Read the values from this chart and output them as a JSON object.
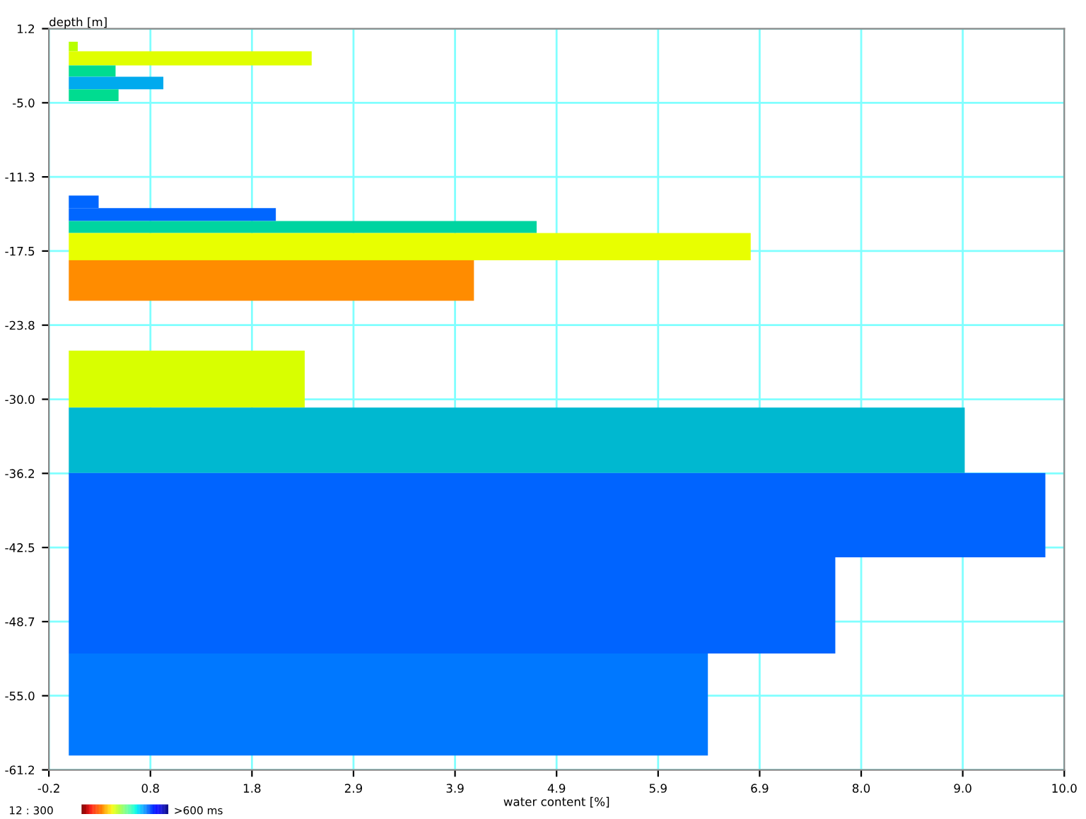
{
  "chart_data": {
    "type": "histogram",
    "orientation": "horizontal",
    "xlabel": "water content [%]",
    "ylabel": "depth [m]",
    "bins": [
      0.1,
      -0.7,
      -1.9,
      -2.85,
      -3.9,
      -4.9,
      -12.85,
      -13.9,
      -15.0,
      -16.0,
      -18.3,
      -21.7,
      -25.9,
      -30.7,
      -36.2,
      -43.3,
      -51.4,
      -60.0
    ],
    "values": [
      0.09,
      2.44,
      0.47,
      0.95,
      0.5,
      0,
      0.3,
      2.08,
      4.7,
      6.85,
      4.07,
      0,
      2.37,
      9.0,
      9.81,
      7.7,
      6.42
    ],
    "colors": [
      "#b8ff00",
      "#e0ff00",
      "#00dc90",
      "#00aaee",
      "#00dc90",
      null,
      "#0066ff",
      "#0066ff",
      "#00d4a0",
      "#e8ff00",
      "#ff8c00",
      null,
      "#d8ff00",
      "#00b8d0",
      "#0064ff",
      "#0064ff",
      "#0078ff"
    ],
    "xlim": [
      -0.2,
      10.0
    ],
    "xticks": [
      -0.2,
      {
        "value": 0.82,
        "label": "0.8"
      },
      {
        "value": 1.84,
        "label": "1.8"
      },
      {
        "value": 2.86,
        "label": "2.9"
      },
      {
        "value": 3.88,
        "label": "3.9"
      },
      {
        "value": 4.9,
        "label": "4.9"
      },
      {
        "value": 5.92,
        "label": "5.9"
      },
      {
        "value": 6.94,
        "label": "6.9"
      },
      {
        "value": 7.96,
        "label": "8.0"
      },
      {
        "value": 8.98,
        "label": "9.0"
      },
      {
        "value": 10.0,
        "label": "10.0"
      }
    ],
    "ylim": [
      -61.2,
      1.2
    ],
    "yticks": [
      1.2,
      {
        "value": -5.04,
        "label": "-5.0"
      },
      {
        "value": -11.28,
        "label": "-11.3"
      },
      {
        "value": -17.52,
        "label": "-17.5"
      },
      {
        "value": -23.76,
        "label": "-23.8"
      },
      {
        "value": -30.0,
        "label": "-30.0"
      },
      {
        "value": -36.24,
        "label": "-36.2"
      },
      {
        "value": -42.48,
        "label": "-42.5"
      },
      {
        "value": -48.72,
        "label": "-48.7"
      },
      {
        "value": -54.96,
        "label": "-55.0"
      },
      -61.2
    ],
    "grid": true,
    "annotations": [
      "12 : 300",
      ">600 ms"
    ]
  }
}
